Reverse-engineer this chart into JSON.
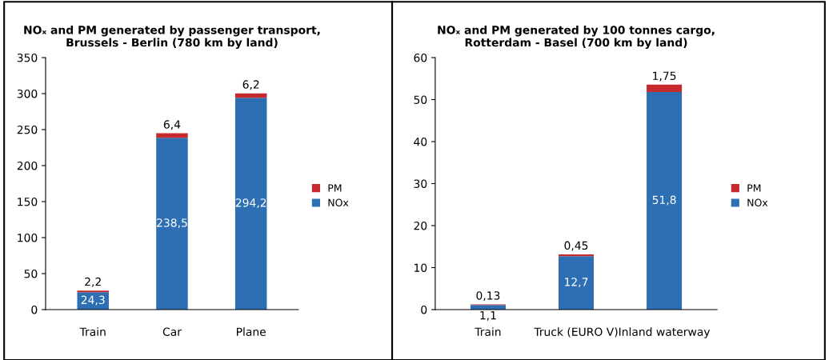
{
  "chart_data": [
    {
      "type": "bar",
      "stacked": true,
      "title": "NOₓ and PM generated by passenger transport,\nBrussels - Berlin (780 km by land)",
      "categories": [
        "Train",
        "Car",
        "Plane"
      ],
      "series": [
        {
          "name": "NOx",
          "color": "#2e6fb4",
          "values": [
            24.3,
            238.5,
            294.2
          ],
          "value_labels": [
            "24,3",
            "238,5",
            "294,2"
          ]
        },
        {
          "name": "PM",
          "color": "#c62a2f",
          "values": [
            2.2,
            6.4,
            6.2
          ],
          "value_labels": [
            "2,2",
            "6,4",
            "6,2"
          ]
        }
      ],
      "ylim": [
        0,
        350
      ],
      "yticks": [
        0,
        50,
        100,
        150,
        200,
        250,
        300,
        350
      ],
      "grid": false,
      "legend": "right"
    },
    {
      "type": "bar",
      "stacked": true,
      "title": "NOₓ and PM generated by 100 tonnes cargo,\nRotterdam - Basel (700 km by land)",
      "categories": [
        "Train",
        "Truck (EURO V)",
        "Inland waterway"
      ],
      "series": [
        {
          "name": "NOx",
          "color": "#2e6fb4",
          "values": [
            1.1,
            12.7,
            51.8
          ],
          "value_labels": [
            "1,1",
            "12,7",
            "51,8"
          ]
        },
        {
          "name": "PM",
          "color": "#c62a2f",
          "values": [
            0.13,
            0.45,
            1.75
          ],
          "value_labels": [
            "0,13",
            "0,45",
            "1,75"
          ]
        }
      ],
      "ylim": [
        0,
        60
      ],
      "yticks": [
        0,
        10,
        20,
        30,
        40,
        50,
        60
      ],
      "grid": false,
      "legend": "right"
    }
  ]
}
